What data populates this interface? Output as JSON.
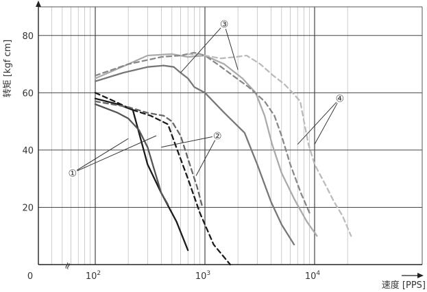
{
  "chart_data": {
    "type": "line",
    "x_scale": "log",
    "xlim": [
      40,
      25000
    ],
    "ylim": [
      0,
      90
    ],
    "grid": true,
    "xlabel": "速度 [PPS]",
    "ylabel": "转矩 [kgf cm]",
    "x_ticks": [
      {
        "value": 100,
        "base": "10",
        "exp": "2"
      },
      {
        "value": 1000,
        "base": "10",
        "exp": "3"
      },
      {
        "value": 10000,
        "base": "10",
        "exp": "4"
      }
    ],
    "x_zero_label": "0",
    "axis_break_mark": "≈",
    "y_ticks": [
      20,
      40,
      60,
      80
    ],
    "series": [
      {
        "group": "1",
        "style": "solid",
        "color": "#1a1a1a",
        "points": [
          [
            100,
            58
          ],
          [
            160,
            56
          ],
          [
            220,
            54
          ],
          [
            300,
            35
          ],
          [
            400,
            25
          ],
          [
            550,
            15
          ],
          [
            700,
            5
          ]
        ]
      },
      {
        "group": "1",
        "style": "solid",
        "color": "#555555",
        "points": [
          [
            100,
            56
          ],
          [
            160,
            53
          ],
          [
            200,
            51
          ],
          [
            250,
            47
          ],
          [
            300,
            41
          ],
          [
            340,
            34
          ],
          [
            400,
            25
          ],
          [
            460,
            21
          ]
        ]
      },
      {
        "group": "2",
        "style": "dashed",
        "color": "#1a1a1a",
        "points": [
          [
            100,
            60
          ],
          [
            150,
            57
          ],
          [
            220,
            54
          ],
          [
            320,
            52
          ],
          [
            460,
            49
          ],
          [
            560,
            40
          ],
          [
            700,
            30
          ],
          [
            900,
            18
          ],
          [
            1200,
            7
          ],
          [
            1700,
            0
          ]
        ]
      },
      {
        "group": "2",
        "style": "dashed",
        "color": "#666666",
        "points": [
          [
            100,
            57
          ],
          [
            200,
            55
          ],
          [
            300,
            53
          ],
          [
            420,
            52
          ],
          [
            500,
            50
          ],
          [
            600,
            45
          ],
          [
            700,
            37
          ],
          [
            850,
            27
          ],
          [
            950,
            20
          ]
        ]
      },
      {
        "group": "3",
        "style": "solid",
        "color": "#777777",
        "points": [
          [
            100,
            64
          ],
          [
            180,
            67
          ],
          [
            300,
            69
          ],
          [
            420,
            69.5
          ],
          [
            520,
            69
          ],
          [
            600,
            67
          ],
          [
            700,
            65
          ],
          [
            800,
            62
          ],
          [
            1000,
            60
          ],
          [
            1500,
            53
          ],
          [
            2300,
            46
          ],
          [
            3000,
            35
          ],
          [
            4000,
            22
          ],
          [
            5000,
            14
          ],
          [
            6500,
            7
          ]
        ]
      },
      {
        "group": "3",
        "style": "solid",
        "color": "#aaaaaa",
        "points": [
          [
            100,
            65
          ],
          [
            200,
            70
          ],
          [
            300,
            73
          ],
          [
            500,
            73.5
          ],
          [
            700,
            72.5
          ],
          [
            1000,
            73
          ],
          [
            1500,
            70
          ],
          [
            2200,
            65
          ],
          [
            2900,
            60
          ],
          [
            3500,
            52
          ],
          [
            4100,
            42
          ],
          [
            5000,
            32
          ],
          [
            6500,
            23
          ],
          [
            8500,
            15
          ],
          [
            10500,
            10
          ]
        ]
      },
      {
        "group": "3",
        "style": "dashed",
        "color": "#888888",
        "points": [
          [
            100,
            66
          ],
          [
            200,
            70
          ],
          [
            400,
            72.5
          ],
          [
            600,
            73
          ],
          [
            800,
            74
          ],
          [
            1000,
            73
          ],
          [
            1300,
            70
          ],
          [
            1800,
            66
          ],
          [
            2500,
            62
          ],
          [
            3500,
            57
          ],
          [
            4300,
            52
          ],
          [
            5000,
            45
          ],
          [
            6000,
            35
          ],
          [
            7500,
            25
          ],
          [
            9000,
            18
          ]
        ]
      },
      {
        "group": "3",
        "style": "dashed",
        "color": "#bbbbbb",
        "points": [
          [
            700,
            73.5
          ],
          [
            1000,
            73
          ],
          [
            1400,
            72
          ],
          [
            1900,
            72.5
          ],
          [
            2400,
            73
          ],
          [
            3200,
            70
          ],
          [
            4200,
            66
          ],
          [
            5300,
            63
          ],
          [
            6300,
            60
          ],
          [
            7400,
            57
          ],
          [
            8000,
            50
          ],
          [
            8800,
            42
          ],
          [
            10000,
            35
          ],
          [
            12500,
            28
          ],
          [
            15000,
            22
          ],
          [
            18000,
            17
          ],
          [
            21500,
            10
          ]
        ]
      }
    ],
    "annotations": [
      {
        "label": "①",
        "anchor": [
          62,
          32
        ],
        "targets": [
          [
            200,
            44
          ],
          [
            360,
            45
          ]
        ]
      },
      {
        "label": "②",
        "anchor": [
          1300,
          45
        ],
        "targets": [
          [
            400,
            41
          ],
          [
            830,
            31
          ]
        ]
      },
      {
        "label": "③",
        "anchor": [
          1500,
          84
        ],
        "targets": [
          [
            600,
            67
          ],
          [
            2000,
            68
          ]
        ]
      },
      {
        "label": "④",
        "anchor": [
          17000,
          58
        ],
        "targets": [
          [
            7000,
            42
          ],
          [
            10000,
            42
          ]
        ]
      }
    ]
  }
}
